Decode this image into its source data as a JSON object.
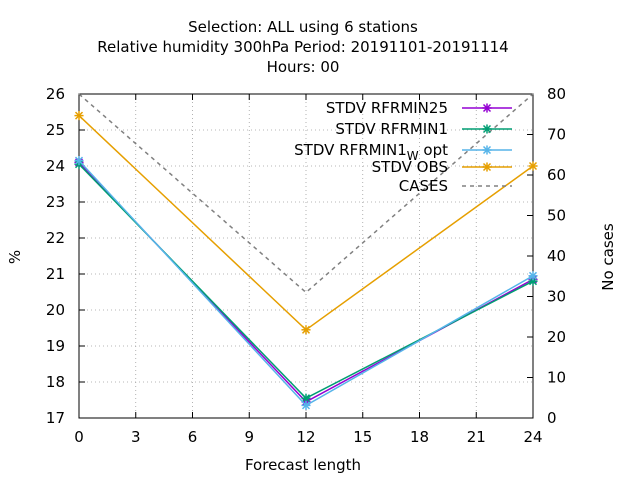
{
  "chart_data": {
    "type": "line",
    "title": {
      "line1": "Selection: ALL using     6 stations",
      "line2": "Relative humidity 300hPa   Period: 20191101-20191114",
      "line3": "Hours:  00"
    },
    "xlabel": "Forecast length",
    "ylabel": "%",
    "y2label": "No cases",
    "xlim": [
      0,
      24
    ],
    "ylim": [
      17,
      26
    ],
    "y2lim": [
      0,
      80
    ],
    "x_ticks": [
      0,
      3,
      6,
      9,
      12,
      15,
      18,
      21,
      24
    ],
    "y_ticks": [
      17,
      18,
      19,
      20,
      21,
      22,
      23,
      24,
      25,
      26
    ],
    "y2_ticks": [
      0,
      10,
      20,
      30,
      40,
      50,
      60,
      70,
      80
    ],
    "grid": true,
    "legend_position": "top-right",
    "x": [
      0,
      12,
      24
    ],
    "series": [
      {
        "name": "STDV RFRMIN25",
        "legend_main": "STDV RFRMIN25",
        "legend_sub": "",
        "legend_tail": "",
        "axis": "y",
        "style": "solid",
        "marker": "x",
        "color": "#9400d3",
        "values": [
          24.1,
          17.45,
          20.85
        ]
      },
      {
        "name": "STDV RFRMIN1",
        "legend_main": "STDV RFRMIN1",
        "legend_sub": "",
        "legend_tail": "",
        "axis": "y",
        "style": "solid",
        "marker": "x",
        "color": "#009e73",
        "values": [
          24.05,
          17.55,
          20.8
        ]
      },
      {
        "name": "STDV RFRMIN1 W opt",
        "legend_main": "STDV RFRMIN1",
        "legend_sub": "W",
        "legend_tail": " opt",
        "axis": "y",
        "style": "solid",
        "marker": "x",
        "color": "#56b4e9",
        "values": [
          24.15,
          17.35,
          20.95
        ]
      },
      {
        "name": "STDV OBS",
        "legend_main": "STDV OBS",
        "legend_sub": "",
        "legend_tail": "",
        "axis": "y",
        "style": "solid",
        "marker": "x",
        "color": "#e69f00",
        "values": [
          25.4,
          19.45,
          24.0
        ]
      },
      {
        "name": "CASES",
        "legend_main": "CASES",
        "legend_sub": "",
        "legend_tail": "",
        "axis": "y2",
        "style": "dashed",
        "marker": "none",
        "color": "#808080",
        "values": [
          80,
          31,
          80
        ]
      }
    ]
  }
}
